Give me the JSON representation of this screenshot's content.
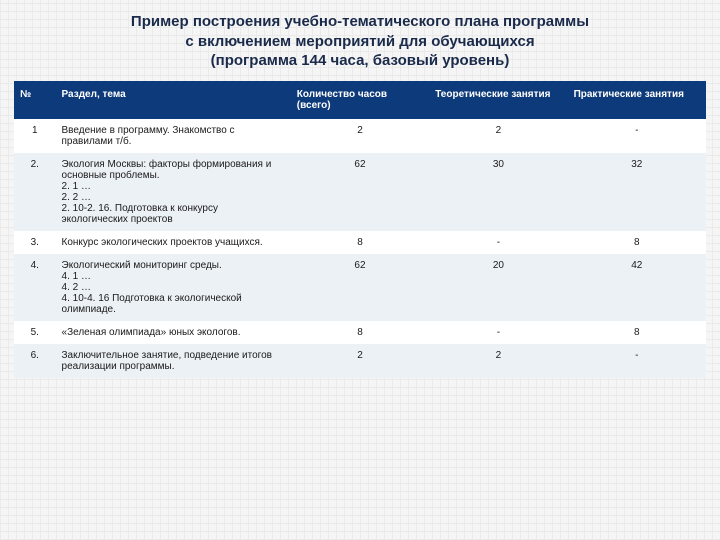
{
  "title": "Пример построения учебно-тематического плана программы\nс включением мероприятий для обучающихся\n(программа 144 часа, базовый уровень)",
  "colors": {
    "header_bg": "#0d3a7a",
    "header_text": "#ffffff",
    "row_odd": "#ffffff",
    "row_even": "#ecf1f6",
    "text": "#1a1a1a",
    "title_color": "#1a2a4a"
  },
  "columns": [
    {
      "key": "num",
      "label": "№"
    },
    {
      "key": "topic",
      "label": "Раздел, тема"
    },
    {
      "key": "hours",
      "label": "Количество часов (всего)"
    },
    {
      "key": "theory",
      "label": "Теоретические занятия"
    },
    {
      "key": "practice",
      "label": "Практические занятия"
    }
  ],
  "rows": [
    {
      "num": "1",
      "topic": "Введение в программу. Знакомство с правилами т/б.",
      "hours": "2",
      "theory": "2",
      "practice": "-"
    },
    {
      "num": "2.",
      "topic": "Экология Москвы: факторы формирования и основные проблемы.\n2. 1 …\n2. 2 …\n2. 10-2. 16. Подготовка к конкурсу экологических проектов",
      "hours": "62",
      "theory": "30",
      "practice": "32"
    },
    {
      "num": "3.",
      "topic": "Конкурс экологических проектов учащихся.",
      "hours": "8",
      "theory": "-",
      "practice": "8"
    },
    {
      "num": "4.",
      "topic": "Экологический мониторинг  среды.\n4. 1 …\n4. 2 …\n4. 10-4. 16 Подготовка к экологической олимпиаде.",
      "hours": "62",
      "theory": "20",
      "practice": "42"
    },
    {
      "num": "5.",
      "topic": "«Зеленая олимпиада» юных экологов.",
      "hours": "8",
      "theory": "-",
      "practice": "8"
    },
    {
      "num": "6.",
      "topic": "Заключительное занятие, подведение итогов реализации программы.",
      "hours": "2",
      "theory": "2",
      "practice": "-"
    }
  ]
}
